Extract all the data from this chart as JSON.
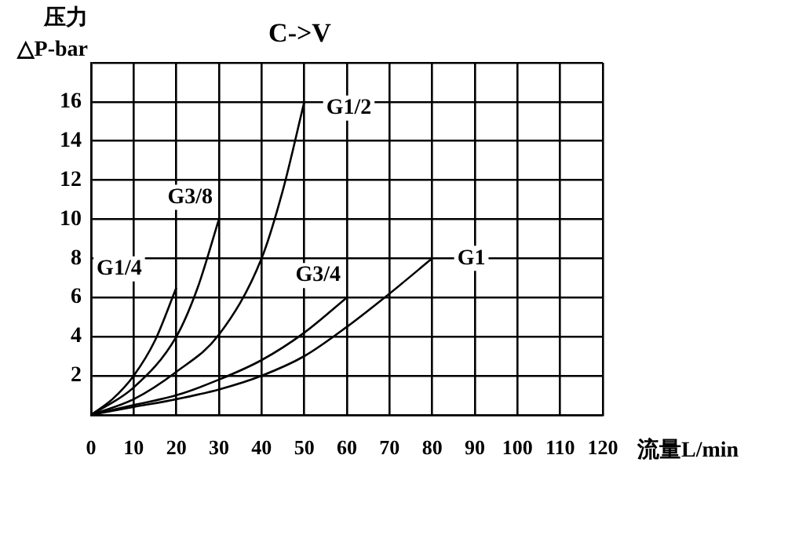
{
  "chart_data": {
    "type": "line",
    "title": "C->V",
    "xlabel": "流量L/min",
    "ylabel": "压力\n△P-bar",
    "xlim": [
      0,
      120
    ],
    "xticks": [
      0,
      10,
      20,
      30,
      40,
      50,
      60,
      70,
      80,
      90,
      100,
      110,
      120
    ],
    "ylim": [
      0,
      18
    ],
    "yticks": [
      {
        "value": 0,
        "label": null
      },
      2,
      4,
      6,
      8,
      10,
      12,
      14,
      16,
      {
        "value": 18,
        "label": null
      }
    ],
    "grid": true,
    "legend": false,
    "marker": "none",
    "line_style": "solid",
    "series": [
      {
        "name": "G1/4",
        "color": "#000000",
        "x": [
          0,
          5,
          10,
          15,
          20
        ],
        "values": [
          0,
          0.8,
          2,
          3.8,
          6.5
        ]
      },
      {
        "name": "G3/8",
        "color": "#000000",
        "x": [
          0,
          10,
          20,
          25,
          30
        ],
        "values": [
          0,
          1.4,
          4,
          6.5,
          10
        ]
      },
      {
        "name": "G1/2",
        "color": "#000000",
        "x": [
          0,
          10,
          20,
          30,
          40,
          45,
          50
        ],
        "values": [
          0,
          0.8,
          2.2,
          4.1,
          8,
          11.5,
          16
        ]
      },
      {
        "name": "G3/4",
        "color": "#000000",
        "x": [
          0,
          10,
          20,
          30,
          40,
          50,
          60
        ],
        "values": [
          0,
          0.5,
          1,
          1.8,
          2.8,
          4.2,
          6
        ]
      },
      {
        "name": "G1",
        "color": "#000000",
        "x": [
          0,
          10,
          20,
          30,
          40,
          50,
          60,
          70,
          80
        ],
        "values": [
          0,
          0.4,
          0.8,
          1.3,
          2,
          3,
          4.5,
          6.2,
          8
        ]
      }
    ]
  }
}
